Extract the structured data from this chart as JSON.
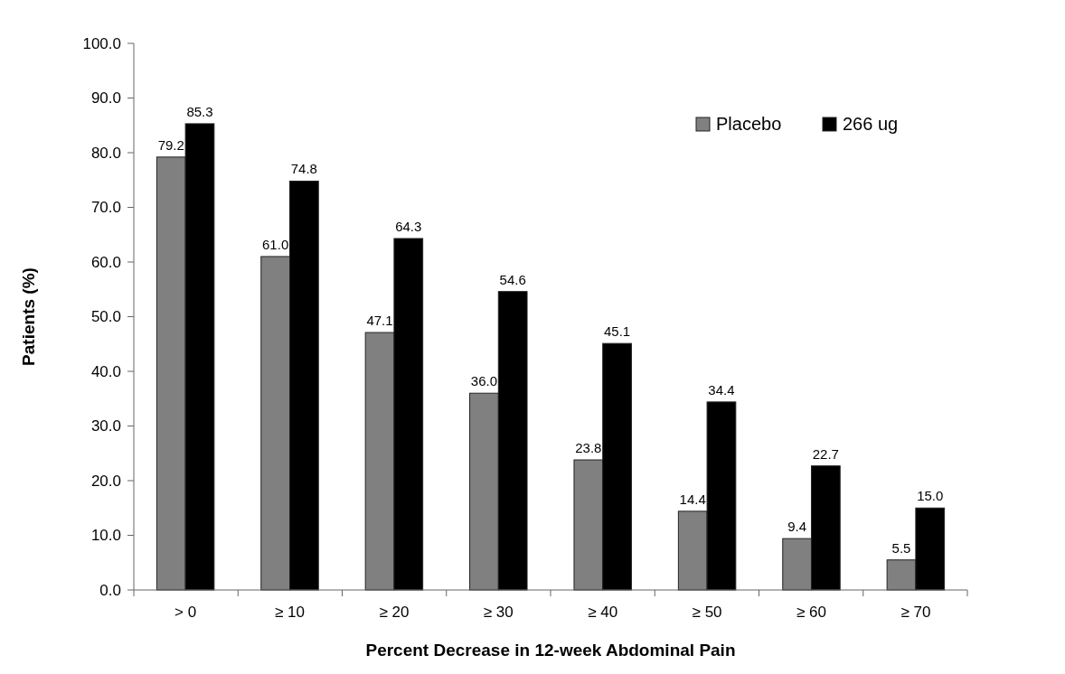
{
  "chart_data": {
    "type": "bar",
    "xlabel": "Percent Decrease in 12-week Abdominal Pain",
    "ylabel": "Patients (%)",
    "categories": [
      "> 0",
      "≥ 10",
      "≥ 20",
      "≥ 30",
      "≥ 40",
      "≥ 50",
      "≥ 60",
      "≥ 70"
    ],
    "series": [
      {
        "name": "Placebo",
        "color": "#808080",
        "values": [
          79.2,
          61.0,
          47.1,
          36.0,
          23.8,
          14.4,
          9.4,
          5.5
        ],
        "value_labels": [
          "79.2",
          "61.0",
          "47.1",
          "36.0",
          "23.8",
          "14.4",
          "9.4",
          "5.5"
        ]
      },
      {
        "name": "266 ug",
        "color": "#000000",
        "values": [
          85.3,
          74.8,
          64.3,
          54.6,
          45.1,
          34.4,
          22.7,
          15.0
        ],
        "value_labels": [
          "85.3",
          "74.8",
          "64.3",
          "54.6",
          "45.1",
          "34.4",
          "22.7",
          "15.0"
        ]
      }
    ],
    "ylim": [
      0,
      100
    ],
    "yticks": [
      {
        "value": 0,
        "label": "0.0"
      },
      {
        "value": 10,
        "label": "10.0"
      },
      {
        "value": 20,
        "label": "20.0"
      },
      {
        "value": 30,
        "label": "30.0"
      },
      {
        "value": 40,
        "label": "40.0"
      },
      {
        "value": 50,
        "label": "50.0"
      },
      {
        "value": 60,
        "label": "60.0"
      },
      {
        "value": 70,
        "label": "70.0"
      },
      {
        "value": 80,
        "label": "80.0"
      },
      {
        "value": 90,
        "label": "90.0"
      },
      {
        "value": 100,
        "label": "100.0"
      }
    ],
    "grid": false,
    "legend": "top right"
  }
}
